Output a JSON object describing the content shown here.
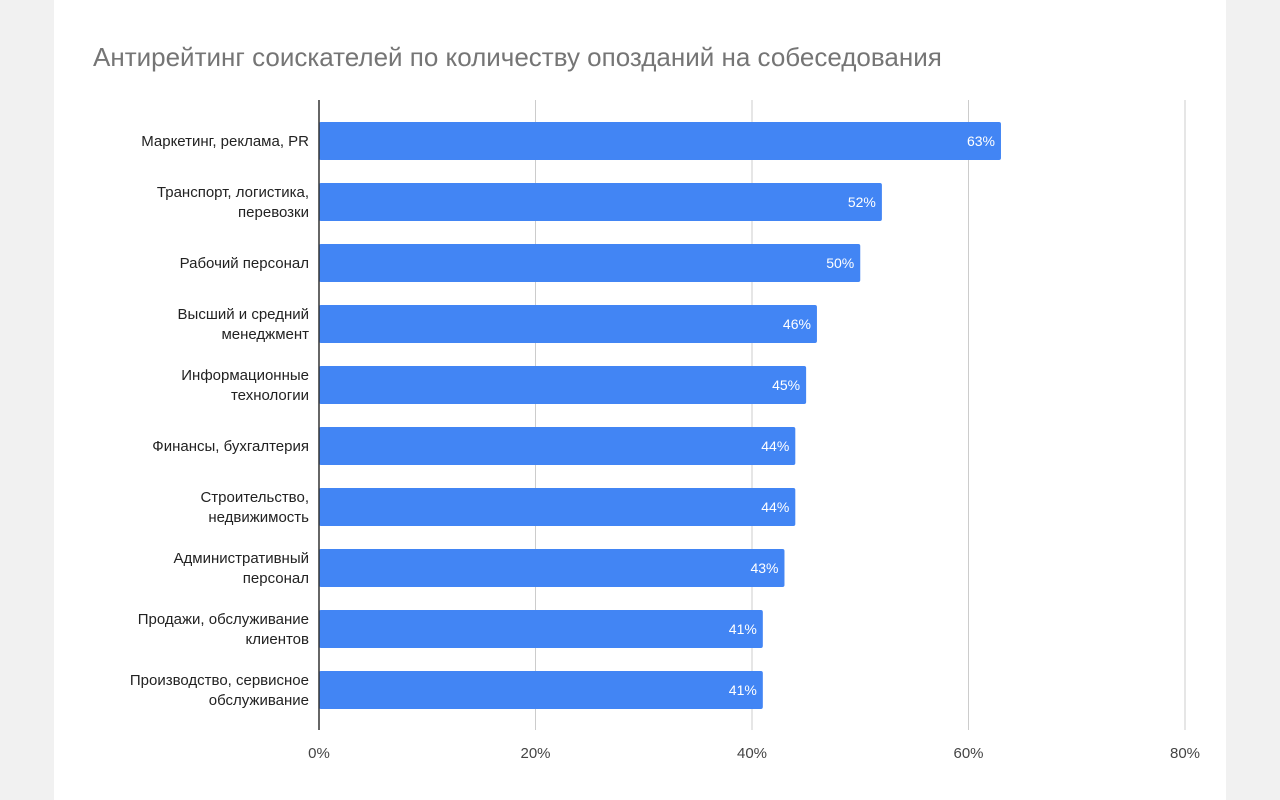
{
  "colors": {
    "bar": "#4285f4",
    "grid": "#cccccc",
    "axis": "#333333"
  },
  "chart_data": {
    "type": "bar",
    "orientation": "horizontal",
    "title": "Антирейтинг соискателей по количеству опозданий на собеседования",
    "xlabel": "",
    "ylabel": "",
    "xlim": [
      0,
      80
    ],
    "grid": true,
    "legend": "none",
    "categories": [
      [
        "Маркетинг, реклама, PR"
      ],
      [
        "Транспорт, логистика,",
        "перевозки"
      ],
      [
        "Рабочий персонал"
      ],
      [
        "Высший и средний",
        "менеджмент"
      ],
      [
        "Информационные",
        "технологии"
      ],
      [
        "Финансы, бухгалтерия"
      ],
      [
        "Строительство,",
        "недвижимость"
      ],
      [
        "Административный",
        "персонал"
      ],
      [
        "Продажи, обслуживание",
        "клиентов"
      ],
      [
        "Производство, сервисное",
        "обслуживание"
      ]
    ],
    "values": [
      63,
      52,
      50,
      46,
      45,
      44,
      44,
      43,
      41,
      41
    ],
    "value_labels": [
      "63%",
      "52%",
      "50%",
      "46%",
      "45%",
      "44%",
      "44%",
      "43%",
      "41%",
      "41%"
    ],
    "ticks": [
      0,
      20,
      40,
      60,
      80
    ],
    "tick_labels": [
      "0%",
      "20%",
      "40%",
      "60%",
      "80%"
    ]
  }
}
